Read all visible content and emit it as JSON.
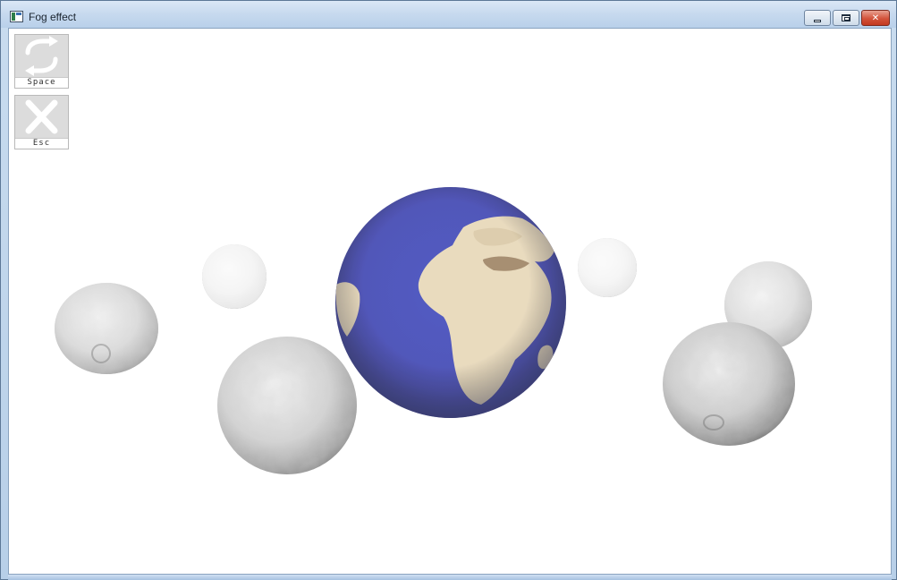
{
  "window": {
    "title": "Fog effect",
    "icon": "app-window-icon",
    "controls": {
      "minimize_icon": "minimize-icon",
      "maximize_icon": "restore-icon",
      "close_label": "✕"
    }
  },
  "hints": [
    {
      "key_label": "Space",
      "icon": "swap-arrows-icon",
      "action": "toggle-fog"
    },
    {
      "key_label": "Esc",
      "icon": "close-x-icon",
      "action": "exit"
    }
  ],
  "scene": {
    "background_color": "#ffffff",
    "bodies": [
      {
        "name": "earth",
        "kind": "planet"
      },
      {
        "name": "moon",
        "kind": "moon",
        "fog_level": 0.8
      },
      {
        "name": "moon",
        "kind": "moon",
        "fog_level": 0.82
      },
      {
        "name": "moon",
        "kind": "moon",
        "fog_level": 0.45
      },
      {
        "name": "moon",
        "kind": "moon",
        "fog_level": 0.35
      },
      {
        "name": "moon",
        "kind": "moon",
        "fog_level": 0.2
      },
      {
        "name": "moon",
        "kind": "moon",
        "fog_level": 0.1
      }
    ]
  },
  "colors": {
    "ocean": "#3b42b5",
    "land": "#e6d6b6",
    "moon_light": "#e4e4e4",
    "moon_dark": "#5a5a5a",
    "close_button": "#c9432a"
  }
}
